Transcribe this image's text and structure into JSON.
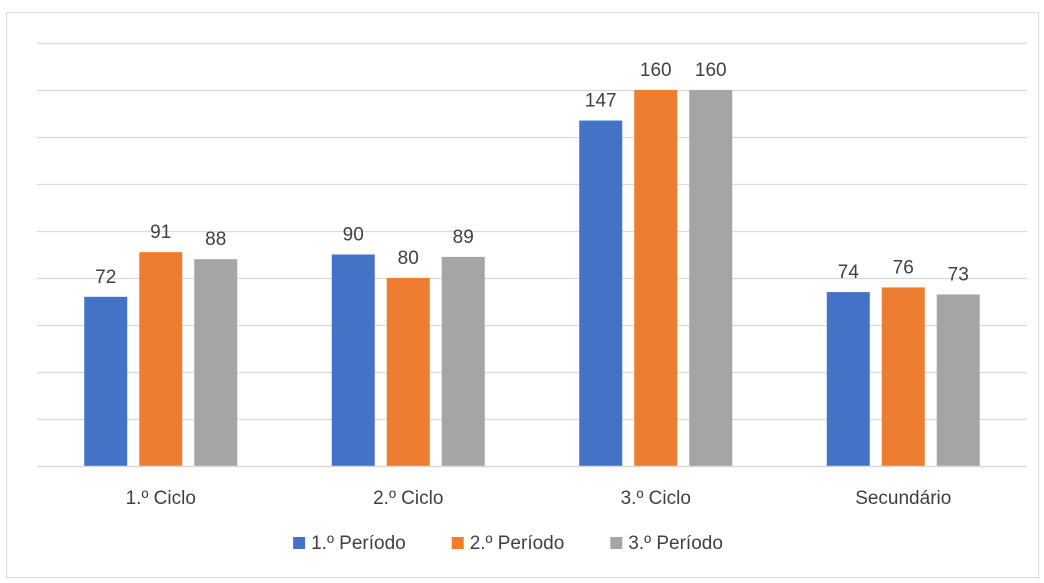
{
  "chart_data": {
    "type": "bar",
    "title": "",
    "xlabel": "",
    "ylabel": "",
    "categories": [
      "1.º Ciclo",
      "2.º Ciclo",
      "3.º Ciclo",
      "Secundário"
    ],
    "series": [
      {
        "name": "1.º Período",
        "color": "#4472C4",
        "values": [
          72,
          90,
          147,
          74
        ]
      },
      {
        "name": "2.º Período",
        "color": "#ED7D31",
        "values": [
          91,
          80,
          160,
          76
        ]
      },
      {
        "name": "3.º Período",
        "color": "#A5A5A5",
        "values": [
          88,
          89,
          160,
          73
        ]
      }
    ],
    "ylim": [
      0,
      180
    ],
    "grid": true,
    "gridline_step": 20,
    "legend": "bottom",
    "data_labels": true
  }
}
